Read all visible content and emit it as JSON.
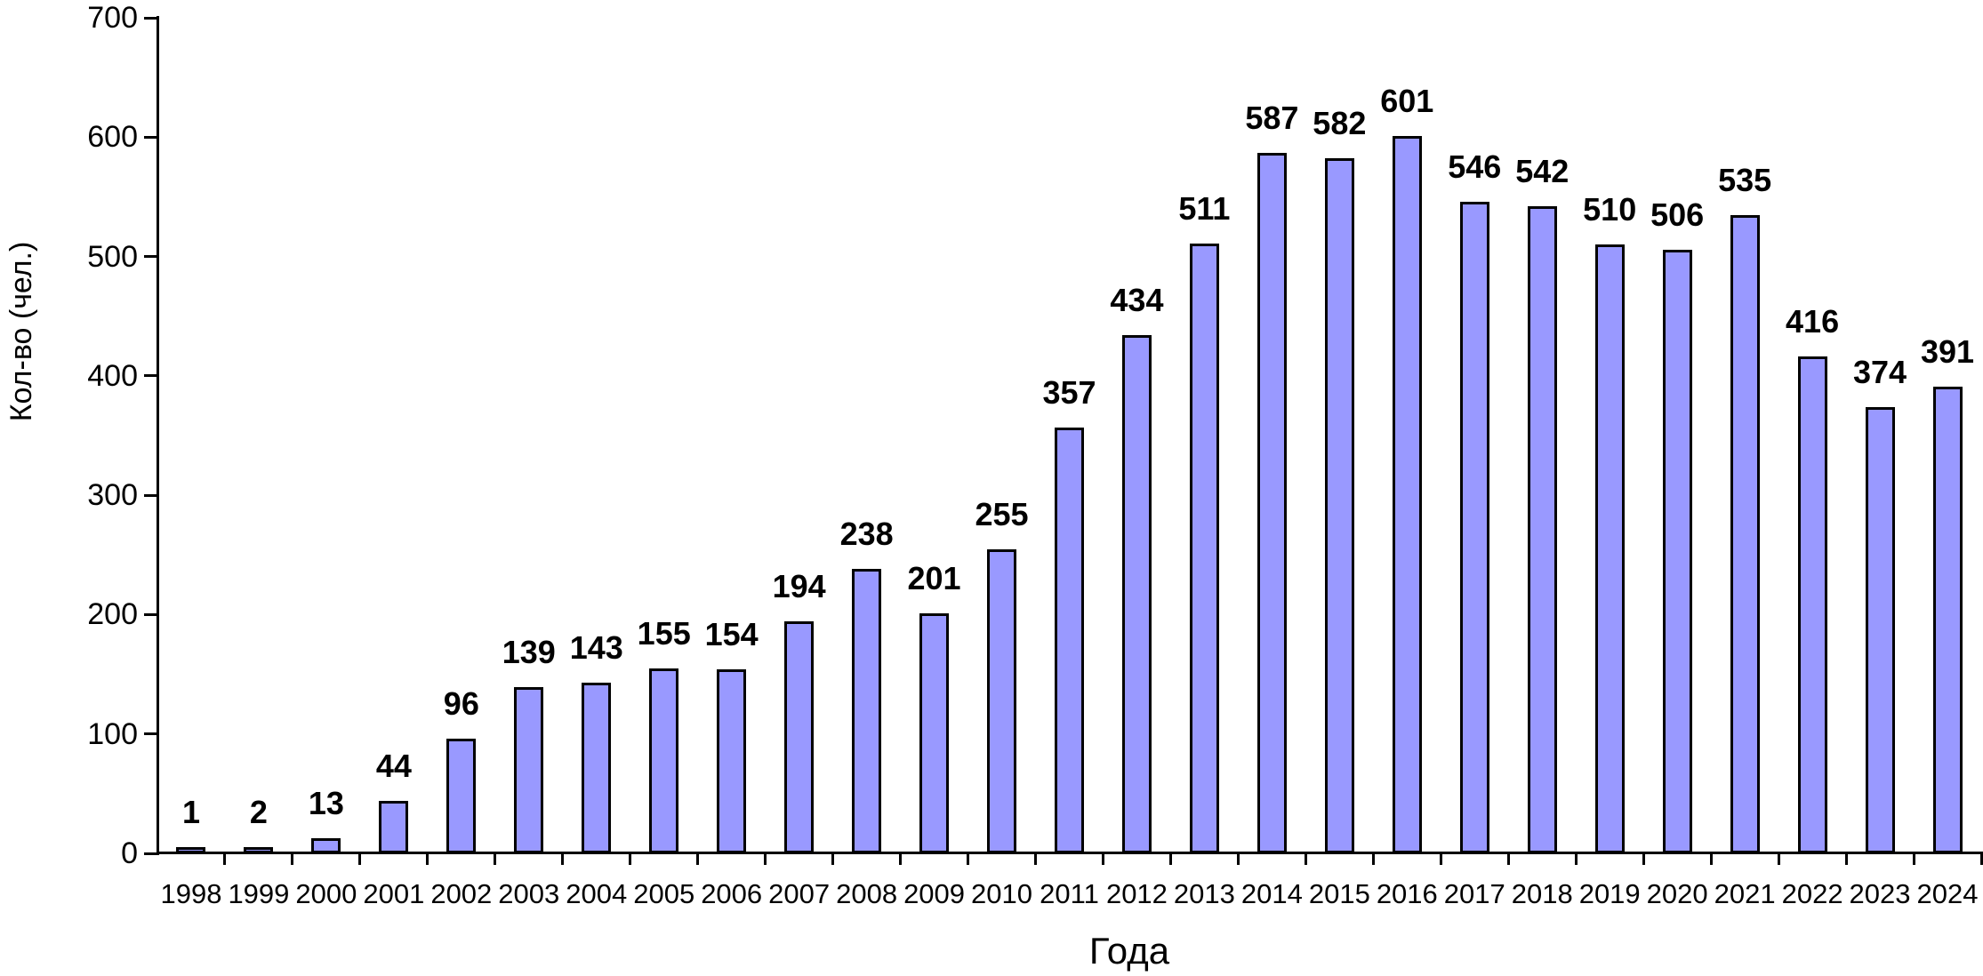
{
  "chart_data": {
    "type": "bar",
    "title": "",
    "xlabel": "Года",
    "ylabel": "Кол-во (чел.)",
    "categories": [
      "1998",
      "1999",
      "2000",
      "2001",
      "2002",
      "2003",
      "2004",
      "2005",
      "2006",
      "2007",
      "2008",
      "2009",
      "2010",
      "2011",
      "2012",
      "2013",
      "2014",
      "2015",
      "2016",
      "2017",
      "2018",
      "2019",
      "2020",
      "2021",
      "2022",
      "2023",
      "2024"
    ],
    "values": [
      1,
      2,
      13,
      44,
      96,
      139,
      143,
      155,
      154,
      194,
      238,
      201,
      255,
      357,
      434,
      511,
      587,
      582,
      601,
      546,
      542,
      510,
      506,
      535,
      416,
      374,
      391
    ],
    "data_labels": [
      1,
      2,
      13,
      44,
      96,
      139,
      143,
      155,
      154,
      194,
      238,
      201,
      255,
      357,
      434,
      511,
      587,
      582,
      601,
      546,
      542,
      510,
      506,
      535,
      416,
      374,
      391
    ],
    "ylim": [
      0,
      700
    ],
    "yticks": [
      0,
      100,
      200,
      300,
      400,
      500,
      600,
      700
    ],
    "grid": false,
    "legend": false,
    "bar_color": "#9999FF",
    "bar_border_color": "#000000",
    "axis_color": "#000000",
    "text_color": "#000000",
    "background_color": "#FFFFFF"
  }
}
